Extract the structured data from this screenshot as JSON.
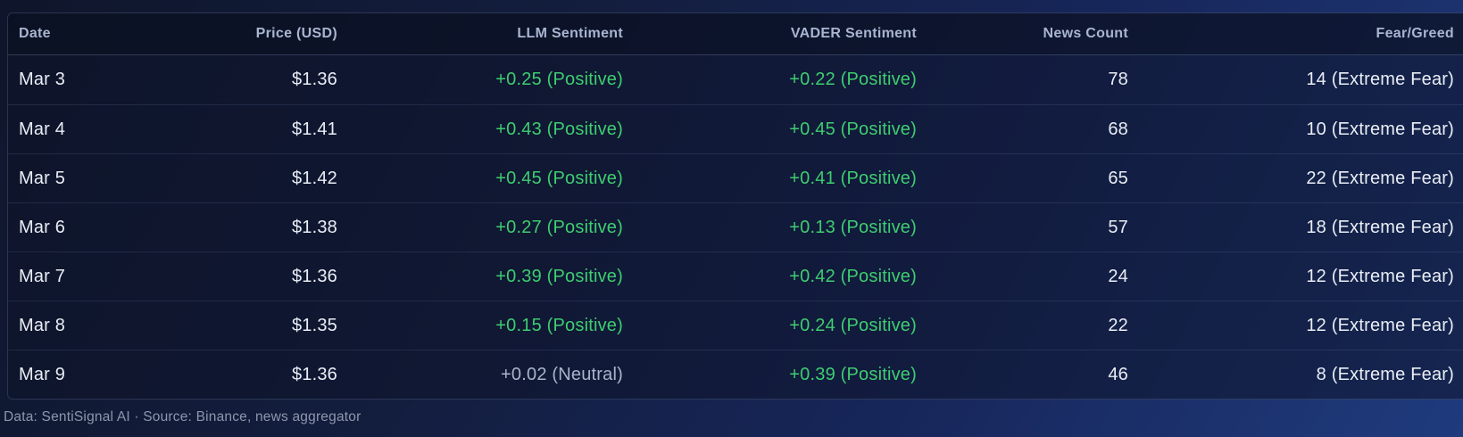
{
  "colors": {
    "positive_text": "#3ecd70",
    "neutral_text": "#a9b4c8",
    "background_top_left": "#0f162b",
    "background_bottom_right": "#1f3b7d",
    "row_text": "#e9edf5",
    "header_text": "#a9b5d0"
  },
  "table": {
    "columns": [
      "Date",
      "Price (USD)",
      "LLM Sentiment",
      "VADER Sentiment",
      "News Count",
      "Fear/Greed"
    ],
    "rows": [
      {
        "date": "Mar 3",
        "price": "$1.36",
        "llm": "+0.25 (Positive)",
        "llm_tone": "positive",
        "vader": "+0.22 (Positive)",
        "vader_tone": "positive",
        "news_count": "78",
        "fear_greed": "14 (Extreme Fear)"
      },
      {
        "date": "Mar 4",
        "price": "$1.41",
        "llm": "+0.43 (Positive)",
        "llm_tone": "positive",
        "vader": "+0.45 (Positive)",
        "vader_tone": "positive",
        "news_count": "68",
        "fear_greed": "10 (Extreme Fear)"
      },
      {
        "date": "Mar 5",
        "price": "$1.42",
        "llm": "+0.45 (Positive)",
        "llm_tone": "positive",
        "vader": "+0.41 (Positive)",
        "vader_tone": "positive",
        "news_count": "65",
        "fear_greed": "22 (Extreme Fear)"
      },
      {
        "date": "Mar 6",
        "price": "$1.38",
        "llm": "+0.27 (Positive)",
        "llm_tone": "positive",
        "vader": "+0.13 (Positive)",
        "vader_tone": "positive",
        "news_count": "57",
        "fear_greed": "18 (Extreme Fear)"
      },
      {
        "date": "Mar 7",
        "price": "$1.36",
        "llm": "+0.39 (Positive)",
        "llm_tone": "positive",
        "vader": "+0.42 (Positive)",
        "vader_tone": "positive",
        "news_count": "24",
        "fear_greed": "12 (Extreme Fear)"
      },
      {
        "date": "Mar 8",
        "price": "$1.35",
        "llm": "+0.15 (Positive)",
        "llm_tone": "positive",
        "vader": "+0.24 (Positive)",
        "vader_tone": "positive",
        "news_count": "22",
        "fear_greed": "12 (Extreme Fear)"
      },
      {
        "date": "Mar 9",
        "price": "$1.36",
        "llm": "+0.02 (Neutral)",
        "llm_tone": "neutral",
        "vader": "+0.39 (Positive)",
        "vader_tone": "positive",
        "news_count": "46",
        "fear_greed": "8 (Extreme Fear)"
      }
    ]
  },
  "footer": {
    "text": "Data: SentiSignal AI · Source: Binance, news aggregator"
  },
  "chart_data": {
    "type": "table",
    "columns": [
      "Date",
      "Price (USD)",
      "LLM Sentiment",
      "VADER Sentiment",
      "News Count",
      "Fear/Greed"
    ],
    "rows": [
      [
        "Mar 3",
        1.36,
        0.25,
        0.22,
        78,
        14
      ],
      [
        "Mar 4",
        1.41,
        0.43,
        0.45,
        68,
        10
      ],
      [
        "Mar 5",
        1.42,
        0.45,
        0.41,
        65,
        22
      ],
      [
        "Mar 6",
        1.38,
        0.27,
        0.13,
        57,
        18
      ],
      [
        "Mar 7",
        1.36,
        0.39,
        0.42,
        24,
        12
      ],
      [
        "Mar 8",
        1.35,
        0.15,
        0.24,
        22,
        12
      ],
      [
        "Mar 9",
        1.36,
        0.02,
        0.39,
        46,
        8
      ]
    ],
    "notes": "LLM/VADER sentiment labels: Positive for all except Mar 9 LLM which is Neutral; Fear/Greed all labeled Extreme Fear"
  }
}
